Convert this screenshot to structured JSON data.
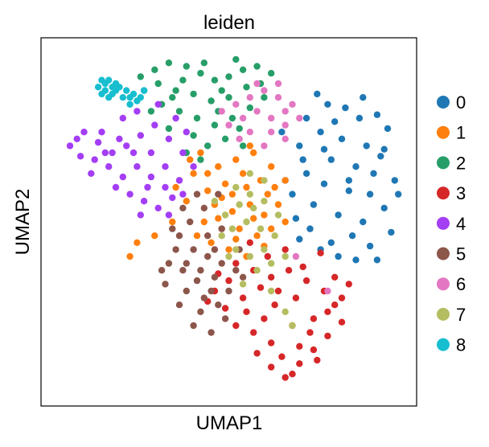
{
  "chart_data": {
    "type": "scatter",
    "title": "leiden",
    "xlabel": "UMAP1",
    "ylabel": "UMAP2",
    "xlim": [
      0,
      100
    ],
    "ylim": [
      0,
      100
    ],
    "grid": false,
    "ticks_shown": false,
    "legend_position": "right",
    "series": [
      {
        "name": "0",
        "color": "#1f77b4",
        "points": [
          [
            75,
            87
          ],
          [
            78,
            84
          ],
          [
            83,
            83
          ],
          [
            88,
            86
          ],
          [
            92,
            81
          ],
          [
            95,
            77
          ],
          [
            89,
            72
          ],
          [
            82,
            74
          ],
          [
            76,
            76
          ],
          [
            72,
            80
          ],
          [
            70,
            72
          ],
          [
            79,
            68
          ],
          [
            86,
            66
          ],
          [
            93,
            69
          ],
          [
            97,
            62
          ],
          [
            90,
            58
          ],
          [
            84,
            59
          ],
          [
            77,
            61
          ],
          [
            72,
            64
          ],
          [
            68,
            58
          ],
          [
            74,
            55
          ],
          [
            81,
            52
          ],
          [
            88,
            50
          ],
          [
            94,
            54
          ],
          [
            96,
            47
          ],
          [
            90,
            43
          ],
          [
            85,
            46
          ],
          [
            79,
            44
          ],
          [
            73,
            48
          ],
          [
            69,
            51
          ],
          [
            86,
            39
          ],
          [
            92,
            39
          ],
          [
            81,
            40
          ],
          [
            76,
            42
          ],
          [
            98,
            58
          ],
          [
            65,
            76
          ],
          [
            87,
            80
          ],
          [
            80,
            79
          ],
          [
            94,
            71
          ],
          [
            71,
            68
          ],
          [
            66,
            62
          ],
          [
            77,
            71
          ],
          [
            84,
            62
          ],
          [
            91,
            64
          ],
          [
            70,
            45
          ]
        ]
      },
      {
        "name": "1",
        "color": "#ff7f0e",
        "points": [
          [
            42,
            70
          ],
          [
            47,
            66
          ],
          [
            52,
            68
          ],
          [
            57,
            70
          ],
          [
            62,
            66
          ],
          [
            66,
            62
          ],
          [
            61,
            58
          ],
          [
            55,
            60
          ],
          [
            49,
            61
          ],
          [
            44,
            59
          ],
          [
            40,
            64
          ],
          [
            46,
            55
          ],
          [
            51,
            53
          ],
          [
            56,
            55
          ],
          [
            60,
            52
          ],
          [
            64,
            55
          ],
          [
            53,
            48
          ],
          [
            58,
            46
          ],
          [
            48,
            48
          ],
          [
            43,
            50
          ],
          [
            38,
            56
          ],
          [
            36,
            62
          ],
          [
            50,
            42
          ],
          [
            55,
            40
          ],
          [
            45,
            44
          ],
          [
            41,
            46
          ],
          [
            62,
            48
          ],
          [
            66,
            50
          ],
          [
            59,
            62
          ],
          [
            54,
            64
          ],
          [
            48,
            57
          ],
          [
            57,
            51
          ],
          [
            63,
            60
          ],
          [
            51,
            58
          ],
          [
            47,
            51
          ],
          [
            52,
            45
          ],
          [
            60,
            43
          ],
          [
            44,
            64
          ],
          [
            56,
            72
          ],
          [
            39,
            68
          ],
          [
            24,
            44
          ],
          [
            29,
            46
          ],
          [
            22,
            40
          ],
          [
            34,
            50
          ],
          [
            35,
            60
          ]
        ]
      },
      {
        "name": "2",
        "color": "#279e68",
        "points": [
          [
            29,
            94
          ],
          [
            33,
            96
          ],
          [
            38,
            95
          ],
          [
            42,
            93
          ],
          [
            46,
            91
          ],
          [
            50,
            92
          ],
          [
            54,
            94
          ],
          [
            58,
            95
          ],
          [
            62,
            93
          ],
          [
            55,
            89
          ],
          [
            50,
            86
          ],
          [
            45,
            85
          ],
          [
            40,
            87
          ],
          [
            35,
            88
          ],
          [
            30,
            90
          ],
          [
            26,
            88
          ],
          [
            31,
            84
          ],
          [
            36,
            82
          ],
          [
            41,
            80
          ],
          [
            46,
            78
          ],
          [
            51,
            80
          ],
          [
            56,
            83
          ],
          [
            60,
            86
          ],
          [
            40,
            75
          ],
          [
            44,
            72
          ],
          [
            49,
            74
          ],
          [
            53,
            77
          ],
          [
            38,
            70
          ],
          [
            33,
            77
          ],
          [
            28,
            82
          ],
          [
            43,
            96
          ],
          [
            52,
            97
          ],
          [
            59,
            90
          ],
          [
            37,
            91
          ],
          [
            48,
            88
          ],
          [
            34,
            86
          ],
          [
            25,
            92
          ],
          [
            54,
            72
          ],
          [
            42,
            68
          ],
          [
            47,
            82
          ]
        ]
      },
      {
        "name": "3",
        "color": "#d62728",
        "points": [
          [
            52,
            38
          ],
          [
            57,
            36
          ],
          [
            62,
            34
          ],
          [
            67,
            36
          ],
          [
            72,
            33
          ],
          [
            77,
            30
          ],
          [
            80,
            26
          ],
          [
            82,
            21
          ],
          [
            78,
            17
          ],
          [
            74,
            13
          ],
          [
            70,
            9
          ],
          [
            66,
            5
          ],
          [
            70,
            14
          ],
          [
            74,
            22
          ],
          [
            69,
            28
          ],
          [
            64,
            30
          ],
          [
            59,
            31
          ],
          [
            54,
            28
          ],
          [
            49,
            25
          ],
          [
            52,
            20
          ],
          [
            57,
            18
          ],
          [
            62,
            15
          ],
          [
            65,
            11
          ],
          [
            60,
            22
          ],
          [
            55,
            24
          ],
          [
            63,
            26
          ],
          [
            68,
            20
          ],
          [
            73,
            18
          ],
          [
            78,
            24
          ],
          [
            71,
            37
          ],
          [
            76,
            41
          ],
          [
            66,
            42
          ],
          [
            61,
            40
          ],
          [
            56,
            44
          ],
          [
            50,
            33
          ],
          [
            46,
            30
          ],
          [
            58,
            12
          ],
          [
            62,
            8
          ],
          [
            68,
            6
          ],
          [
            75,
            10
          ],
          [
            82,
            28
          ],
          [
            84,
            32
          ],
          [
            44,
            27
          ],
          [
            47,
            35
          ],
          [
            80,
            34
          ]
        ]
      },
      {
        "name": "4",
        "color": "#a43ef4",
        "points": [
          [
            5,
            72
          ],
          [
            9,
            76
          ],
          [
            13,
            73
          ],
          [
            17,
            70
          ],
          [
            21,
            72
          ],
          [
            25,
            75
          ],
          [
            29,
            78
          ],
          [
            33,
            74
          ],
          [
            37,
            70
          ],
          [
            40,
            66
          ],
          [
            36,
            62
          ],
          [
            32,
            60
          ],
          [
            28,
            63
          ],
          [
            24,
            66
          ],
          [
            20,
            63
          ],
          [
            16,
            66
          ],
          [
            12,
            68
          ],
          [
            8,
            69
          ],
          [
            18,
            60
          ],
          [
            22,
            58
          ],
          [
            26,
            56
          ],
          [
            30,
            54
          ],
          [
            34,
            57
          ],
          [
            14,
            76
          ],
          [
            20,
            80
          ],
          [
            24,
            82
          ],
          [
            28,
            70
          ],
          [
            32,
            66
          ],
          [
            38,
            76
          ],
          [
            11,
            64
          ],
          [
            23,
            70
          ],
          [
            27,
            60
          ],
          [
            35,
            80
          ],
          [
            30,
            84
          ],
          [
            19,
            74
          ],
          [
            15,
            70
          ],
          [
            7,
            74
          ],
          [
            25,
            52
          ],
          [
            33,
            52
          ],
          [
            37,
            58
          ]
        ]
      },
      {
        "name": "5",
        "color": "#8c564b",
        "points": [
          [
            36,
            46
          ],
          [
            40,
            42
          ],
          [
            44,
            40
          ],
          [
            48,
            38
          ],
          [
            52,
            36
          ],
          [
            46,
            34
          ],
          [
            41,
            33
          ],
          [
            37,
            36
          ],
          [
            33,
            38
          ],
          [
            38,
            30
          ],
          [
            43,
            28
          ],
          [
            47,
            26
          ],
          [
            42,
            24
          ],
          [
            40,
            20
          ],
          [
            45,
            18
          ],
          [
            49,
            22
          ],
          [
            36,
            26
          ],
          [
            32,
            32
          ],
          [
            39,
            50
          ],
          [
            43,
            54
          ],
          [
            47,
            58
          ],
          [
            41,
            58
          ],
          [
            37,
            54
          ],
          [
            35,
            42
          ],
          [
            44,
            46
          ],
          [
            50,
            30
          ],
          [
            54,
            34
          ],
          [
            42,
            36
          ],
          [
            46,
            42
          ],
          [
            38,
            38
          ],
          [
            34,
            48
          ],
          [
            48,
            48
          ],
          [
            53,
            42
          ],
          [
            31,
            36
          ],
          [
            45,
            30
          ]
        ]
      },
      {
        "name": "6",
        "color": "#e377c2",
        "points": [
          [
            52,
            84
          ],
          [
            56,
            86
          ],
          [
            60,
            88
          ],
          [
            64,
            86
          ],
          [
            66,
            82
          ],
          [
            62,
            80
          ],
          [
            58,
            82
          ],
          [
            54,
            80
          ],
          [
            50,
            78
          ],
          [
            62,
            76
          ],
          [
            66,
            78
          ],
          [
            68,
            84
          ],
          [
            64,
            90
          ],
          [
            56,
            76
          ],
          [
            60,
            72
          ],
          [
            66,
            74
          ],
          [
            70,
            80
          ],
          [
            58,
            90
          ],
          [
            48,
            82
          ],
          [
            53,
            74
          ],
          [
            78,
            30
          ],
          [
            69,
            40
          ]
        ]
      },
      {
        "name": "7",
        "color": "#b5bd61",
        "points": [
          [
            52,
            60
          ],
          [
            56,
            58
          ],
          [
            60,
            56
          ],
          [
            57,
            54
          ],
          [
            53,
            55
          ],
          [
            49,
            52
          ],
          [
            55,
            50
          ],
          [
            59,
            48
          ],
          [
            63,
            46
          ],
          [
            60,
            42
          ],
          [
            56,
            40
          ],
          [
            52,
            42
          ],
          [
            48,
            46
          ],
          [
            62,
            38
          ],
          [
            66,
            40
          ],
          [
            58,
            36
          ],
          [
            54,
            32
          ],
          [
            50,
            40
          ],
          [
            64,
            52
          ],
          [
            60,
            62
          ],
          [
            56,
            64
          ],
          [
            46,
            56
          ],
          [
            68,
            20
          ],
          [
            66,
            24
          ],
          [
            51,
            48
          ],
          [
            62,
            30
          ]
        ]
      },
      {
        "name": "8",
        "color": "#17becf",
        "points": [
          [
            13,
            89
          ],
          [
            14,
            91
          ],
          [
            15,
            90
          ],
          [
            16,
            91
          ],
          [
            17,
            89
          ],
          [
            15,
            88
          ],
          [
            18,
            88
          ],
          [
            19,
            89
          ],
          [
            17,
            87
          ],
          [
            20,
            86
          ],
          [
            21,
            88
          ],
          [
            22,
            86
          ],
          [
            23,
            87
          ],
          [
            24,
            85
          ],
          [
            25,
            86
          ],
          [
            22,
            84
          ],
          [
            26,
            88
          ],
          [
            14,
            87
          ],
          [
            18,
            90
          ],
          [
            16,
            86
          ]
        ]
      }
    ],
    "legend": [
      "0",
      "1",
      "2",
      "3",
      "4",
      "5",
      "6",
      "7",
      "8"
    ]
  }
}
